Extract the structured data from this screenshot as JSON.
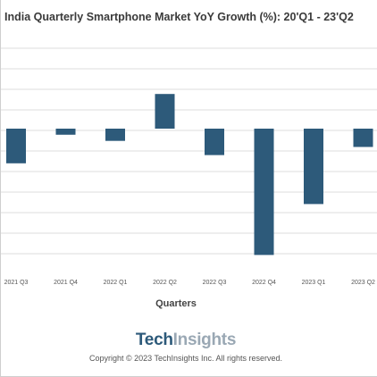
{
  "chart_data": {
    "type": "bar",
    "title": "India Quarterly Smartphone Market YoY Growth (%): 20'Q1 - 23'Q2",
    "xlabel": "Quarters",
    "ylabel": "",
    "categories": [
      "2021 Q3",
      "2021 Q4",
      "2022 Q1",
      "2022 Q2",
      "2022 Q3",
      "2022 Q4",
      "2023 Q1",
      "2023 Q2"
    ],
    "values": [
      -17,
      -3,
      -6,
      17,
      -13,
      -62,
      -37,
      -9
    ],
    "ylim": [
      -70,
      50
    ],
    "grid": true,
    "colors": {
      "bar": "#2d5a7a",
      "grid": "#dcdcdc"
    }
  },
  "branding": {
    "logo_part1": "Tech",
    "logo_part2": "Insights",
    "copyright": "Copyright © 2023 TechInsights Inc.  All rights reserved."
  }
}
